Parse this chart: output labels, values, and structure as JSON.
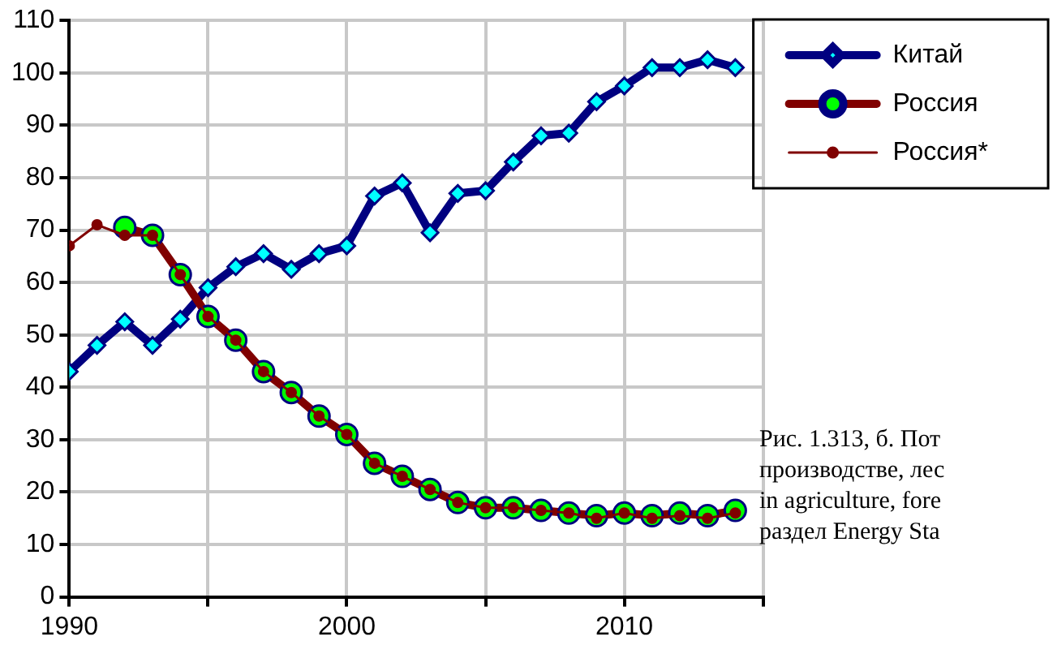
{
  "chart_data": {
    "type": "line",
    "x": [
      1990,
      1991,
      1992,
      1993,
      1994,
      1995,
      1996,
      1997,
      1998,
      1999,
      2000,
      2001,
      2002,
      2003,
      2004,
      2005,
      2006,
      2007,
      2008,
      2009,
      2010,
      2011,
      2012,
      2013,
      2014
    ],
    "series": [
      {
        "name": "Китай",
        "color": "#000080",
        "marker": "diamond",
        "values": [
          43,
          48,
          52.5,
          48,
          53,
          59,
          63,
          65.5,
          62.5,
          65.5,
          67,
          76.5,
          79,
          69.5,
          77,
          77.5,
          83,
          88,
          88.5,
          94.5,
          97.5,
          101,
          101,
          102.5,
          101
        ]
      },
      {
        "name": "Россия",
        "color": "#800000",
        "marker": "circle",
        "values": [
          null,
          null,
          70.5,
          69,
          61.5,
          53.5,
          49,
          43,
          39,
          34.5,
          31,
          25.5,
          23,
          20.5,
          18,
          17,
          17,
          16.5,
          16,
          15.5,
          16,
          15.5,
          16,
          15.5,
          16.5
        ]
      },
      {
        "name": "Россия*",
        "color": "#800000",
        "marker": "circle",
        "values": [
          67,
          71,
          69,
          69,
          61.5,
          53.5,
          49,
          43,
          39,
          34.5,
          31,
          25.5,
          23,
          20.5,
          18,
          17,
          17,
          16.5,
          16,
          15,
          16,
          15,
          15.5,
          15,
          16
        ]
      }
    ],
    "xlim": [
      1990,
      2015
    ],
    "xticks": [
      1990,
      {
        "value": 1995,
        "label": null
      },
      2000,
      {
        "value": 2005,
        "label": null
      },
      2010,
      {
        "value": 2015,
        "label": null
      }
    ],
    "ylim": [
      0,
      110
    ],
    "yticks": [
      0,
      10,
      20,
      30,
      40,
      50,
      60,
      70,
      80,
      90,
      100,
      110
    ],
    "grid": true,
    "legend": "right",
    "annotations": [
      "Рис. 1.313, б. Пот",
      "производстве, лес",
      "in agriculture, fore",
      "раздел Energy Sta"
    ]
  }
}
